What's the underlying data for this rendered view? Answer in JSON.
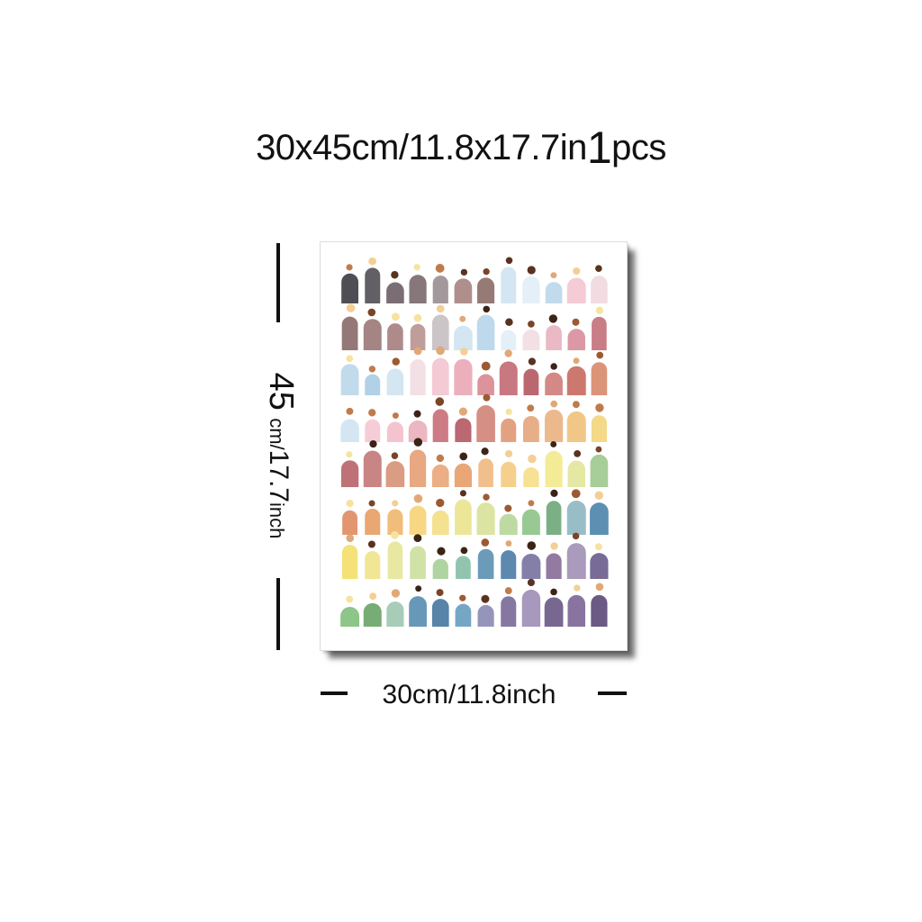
{
  "header": {
    "size_text": "30x45cm/11.8x17.7in",
    "quantity_number": "1",
    "quantity_unit": "pcs"
  },
  "dimensions": {
    "height_number": "45",
    "height_unit": "cm/",
    "height_inch": "17.7",
    "height_inch_unit": "inch",
    "width_label": "30cm/11.8inch"
  },
  "artwork": {
    "subject": "rows of watercolor arch-shaped figures with round heads",
    "row_palettes": [
      [
        "#3f3f45",
        "#555258",
        "#6f6268",
        "#7d6a6f",
        "#9b8f92",
        "#a88681",
        "#8c6f6a",
        "#cfe4f1",
        "#e3eef7",
        "#bcd8ea",
        "#f4c7d3",
        "#f0d9e0"
      ],
      [
        "#8a6c6b",
        "#9c7b78",
        "#a88080",
        "#b89592",
        "#c7c0c3",
        "#cfe4f1",
        "#b9d6ea",
        "#e3eef7",
        "#f1dde3",
        "#e8b3c0",
        "#d98f9c",
        "#c4727c"
      ],
      [
        "#bcd8ea",
        "#a9cde5",
        "#cfe4f1",
        "#f1dde3",
        "#f3c6d1",
        "#e9a9b6",
        "#d98a93",
        "#c36c75",
        "#b55a63",
        "#d07f7c",
        "#c96c62",
        "#d98b6e"
      ],
      [
        "#cfe4f1",
        "#f5c8d4",
        "#f2bfcb",
        "#eab0bd",
        "#c9707a",
        "#b55b66",
        "#d38578",
        "#df9a77",
        "#e6a77d",
        "#eab383",
        "#f0c27d",
        "#f2d67e"
      ],
      [
        "#b8666c",
        "#c47a79",
        "#d89479",
        "#e5a177",
        "#eaa77a",
        "#e79f6c",
        "#f0ba82",
        "#f4cc83",
        "#f6df8a",
        "#f3e98e",
        "#e2e69b",
        "#9fc98f"
      ],
      [
        "#e08d63",
        "#e7a066",
        "#f0b770",
        "#f6d478",
        "#f3df88",
        "#eae58f",
        "#d8e29b",
        "#b9d79a",
        "#8fc48a",
        "#70a97b",
        "#8fb7c2",
        "#4f86ad"
      ],
      [
        "#f3df6e",
        "#f0e48b",
        "#e6e69a",
        "#cde0a0",
        "#a9cf9a",
        "#88bfa8",
        "#5e93b3",
        "#4f7fa8",
        "#7a74a2",
        "#8a6f98",
        "#a391b5",
        "#6d5e8f"
      ],
      [
        "#84c07f",
        "#6ba668",
        "#a0c9b3",
        "#5b8fb2",
        "#4a7aa3",
        "#6a9ec0",
        "#8c8cb5",
        "#7c6b9a",
        "#9f8fb8",
        "#6c5a88",
        "#7f6797",
        "#5e4c78"
      ]
    ],
    "head_colors": [
      "#3b2416",
      "#5a3220",
      "#7a4428",
      "#9c5a33",
      "#c07b4c",
      "#e1a877",
      "#f4cf95",
      "#f7e2a0"
    ]
  }
}
